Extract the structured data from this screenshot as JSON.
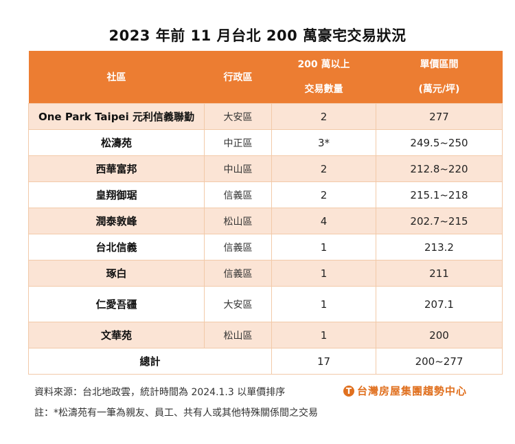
{
  "title": "2023 年前 11 月台北 200 萬豪宅交易狀況",
  "table": {
    "headers": [
      {
        "line1": "社區",
        "line2": ""
      },
      {
        "line1": "行政區",
        "line2": ""
      },
      {
        "line1": "200 萬以上",
        "line2": "交易數量"
      },
      {
        "line1": "單價區間",
        "line2": "(萬元/坪)"
      }
    ],
    "rows": [
      {
        "name": "One Park Taipei 元利信義聯勤",
        "district": "大安區",
        "count": "2",
        "price": "277"
      },
      {
        "name": "松濤苑",
        "district": "中正區",
        "count": "3*",
        "price": "249.5~250"
      },
      {
        "name": "西華富邦",
        "district": "中山區",
        "count": "2",
        "price": "212.8~220"
      },
      {
        "name": "皇翔御琚",
        "district": "信義區",
        "count": "2",
        "price": "215.1~218"
      },
      {
        "name": "潤泰敦峰",
        "district": "松山區",
        "count": "4",
        "price": "202.7~215"
      },
      {
        "name": "台北信義",
        "district": "信義區",
        "count": "1",
        "price": "213.2"
      },
      {
        "name": "琢白",
        "district": "信義區",
        "count": "1",
        "price": "211"
      },
      {
        "name": "仁愛吾疆",
        "district": "大安區",
        "count": "1",
        "price": "207.1"
      },
      {
        "name": "文華苑",
        "district": "松山區",
        "count": "1",
        "price": "200"
      }
    ],
    "total": {
      "label": "總計",
      "count": "17",
      "price": "200~277"
    }
  },
  "footer": {
    "source": "資料來源：台北地政雲，統計時間為 2024.1.3 以單價排序",
    "note": "註：*松濤苑有一筆為親友、員工、共有人或其他特殊關係間之交易",
    "logo_text": "台灣房屋集團趨勢中心",
    "logo_icon": "T"
  },
  "colors": {
    "header_bg": "#ec7d32",
    "odd_row_bg": "#fbe4d5",
    "border": "#f2c9a8",
    "logo": "#e0701f"
  }
}
